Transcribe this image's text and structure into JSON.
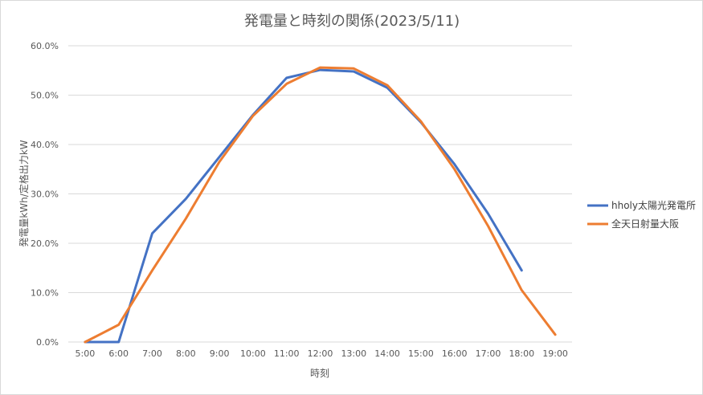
{
  "chart_data": {
    "type": "line",
    "title": "発電量と時刻の関係(2023/5/11)",
    "xlabel": "時刻",
    "ylabel": "発電量kWh/定格出力kW",
    "categories": [
      "5:00",
      "6:00",
      "7:00",
      "8:00",
      "9:00",
      "10:00",
      "11:00",
      "12:00",
      "13:00",
      "14:00",
      "15:00",
      "16:00",
      "17:00",
      "18:00",
      "19:00"
    ],
    "ylim": [
      0,
      60
    ],
    "yticks": [
      0,
      10,
      20,
      30,
      40,
      50,
      60
    ],
    "yticks_labels": [
      "0.0%",
      "10.0%",
      "20.0%",
      "30.0%",
      "40.0%",
      "50.0%",
      "60.0%"
    ],
    "grid": true,
    "legend": "right",
    "series": [
      {
        "name": "hholy太陽光発電所",
        "color": "#4472c4",
        "values": [
          0.0,
          0.0,
          22.0,
          29.0,
          37.5,
          46.0,
          53.5,
          55.1,
          54.8,
          51.5,
          44.5,
          36.0,
          26.0,
          14.5,
          null
        ]
      },
      {
        "name": "全天日射量大阪",
        "color": "#ed7d31",
        "values": [
          0.0,
          3.5,
          14.5,
          25.0,
          36.5,
          45.8,
          52.3,
          55.6,
          55.4,
          52.0,
          44.7,
          35.0,
          23.5,
          10.5,
          1.5
        ]
      }
    ]
  }
}
